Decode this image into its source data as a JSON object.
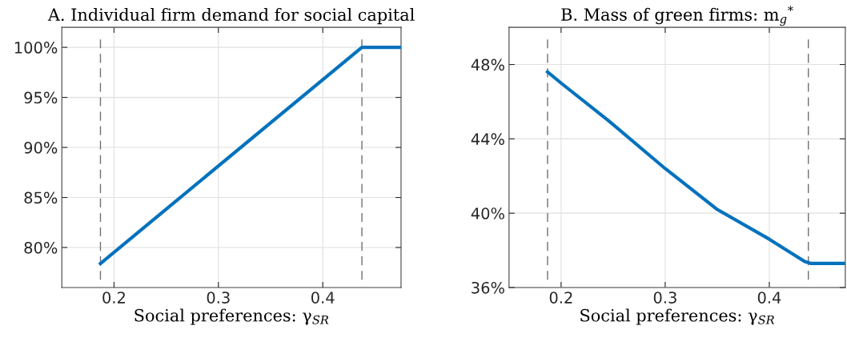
{
  "chart_data": [
    {
      "type": "line",
      "title": "A. Individual firm demand for social capital",
      "xlabel": "Social preferences: γ$_{SR}$",
      "x": [
        0.187,
        0.434,
        0.4375,
        0.475
      ],
      "series": [
        {
          "color": "#0072bd",
          "values": [
            78.4,
            99.7,
            100,
            100
          ]
        }
      ],
      "xlim": [
        0.15,
        0.475
      ],
      "xticks": [
        0.2,
        0.3,
        0.4
      ],
      "ylim": [
        76,
        102
      ],
      "yticks": [
        {
          "value": 80,
          "label": "80%"
        },
        {
          "value": 85,
          "label": "85%"
        },
        {
          "value": 90,
          "label": "90%"
        },
        {
          "value": 95,
          "label": "95%"
        },
        {
          "value": 100,
          "label": "100%"
        }
      ],
      "ref_lines": [
        {
          "axis": "x",
          "value": 0.187,
          "color": "#707070",
          "line_style": "dashed"
        },
        {
          "axis": "x",
          "value": 0.4375,
          "color": "#707070",
          "line_style": "dashed"
        }
      ],
      "grid": true,
      "line_style": "solid",
      "marker": "none"
    },
    {
      "type": "line",
      "title": "B. Mass of green firms: m$_{g}$$^{*}$",
      "xlabel": "Social preferences: γ$_{SR}$",
      "x": [
        0.187,
        0.2,
        0.245,
        0.3,
        0.35,
        0.4,
        0.434,
        0.4395,
        0.473
      ],
      "series": [
        {
          "color": "#0072bd",
          "values": [
            47.6,
            47.0,
            45.0,
            42.4,
            40.2,
            38.6,
            37.4,
            37.3,
            37.3
          ]
        }
      ],
      "xlim": [
        0.15,
        0.473
      ],
      "xticks": [
        0.2,
        0.3,
        0.4
      ],
      "ylim": [
        36,
        50
      ],
      "yticks": [
        {
          "value": 36,
          "label": "36%"
        },
        {
          "value": 40,
          "label": "40%"
        },
        {
          "value": 44,
          "label": "44%"
        },
        {
          "value": 48,
          "label": "48%"
        }
      ],
      "ref_lines": [
        {
          "axis": "x",
          "value": 0.187,
          "color": "#707070",
          "line_style": "dashed"
        },
        {
          "axis": "x",
          "value": 0.4375,
          "color": "#707070",
          "line_style": "dashed"
        }
      ],
      "grid": true,
      "line_style": "solid",
      "marker": "none"
    }
  ]
}
